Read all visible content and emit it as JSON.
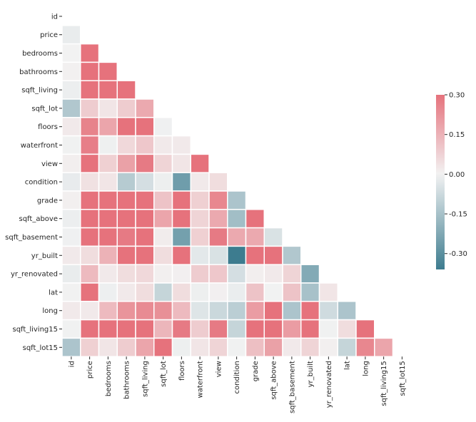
{
  "chart_data": {
    "type": "heatmap",
    "title": "",
    "mask": "upper-triangle",
    "labels": [
      "id",
      "price",
      "bedrooms",
      "bathrooms",
      "sqft_living",
      "sqft_lot",
      "floors",
      "waterfront",
      "view",
      "condition",
      "grade",
      "sqft_above",
      "sqft_basement",
      "yr_built",
      "yr_renovated",
      "lat",
      "long",
      "sqft_living15",
      "sqft_lot15"
    ],
    "lower_triangle_values": [
      [],
      [
        -0.017
      ],
      [
        0.001,
        0.31
      ],
      [
        0.005,
        0.53,
        0.52
      ],
      [
        -0.012,
        0.7,
        0.58,
        0.75
      ],
      [
        -0.13,
        0.09,
        0.03,
        0.09,
        0.17
      ],
      [
        0.02,
        0.26,
        0.18,
        0.5,
        0.35,
        -0.005
      ],
      [
        -0.003,
        0.27,
        -0.007,
        0.06,
        0.1,
        0.02,
        0.02
      ],
      [
        0.01,
        0.4,
        0.08,
        0.19,
        0.28,
        0.07,
        0.03,
        0.4
      ],
      [
        -0.02,
        0.04,
        0.03,
        -0.12,
        -0.06,
        -0.01,
        -0.26,
        0.02,
        0.05
      ],
      [
        0.008,
        0.67,
        0.36,
        0.66,
        0.76,
        0.11,
        0.46,
        0.08,
        0.25,
        -0.14
      ],
      [
        -0.011,
        0.61,
        0.48,
        0.69,
        0.88,
        0.18,
        0.52,
        0.07,
        0.17,
        -0.16,
        0.76
      ],
      [
        -0.005,
        0.32,
        0.3,
        0.28,
        0.44,
        0.015,
        -0.25,
        0.08,
        0.28,
        0.17,
        0.17,
        -0.05
      ],
      [
        0.02,
        0.05,
        0.15,
        0.51,
        0.32,
        0.05,
        0.49,
        -0.03,
        -0.05,
        -0.36,
        0.45,
        0.42,
        -0.13
      ],
      [
        -0.017,
        0.13,
        0.02,
        0.05,
        0.06,
        0.008,
        0.006,
        0.09,
        0.1,
        -0.06,
        0.01,
        0.02,
        0.07,
        -0.22
      ],
      [
        -0.002,
        0.31,
        -0.009,
        0.02,
        0.05,
        -0.09,
        0.05,
        -0.01,
        0.006,
        -0.015,
        0.11,
        -0.001,
        0.11,
        -0.15,
        0.03
      ],
      [
        0.02,
        0.02,
        0.13,
        0.22,
        0.24,
        0.23,
        0.13,
        -0.04,
        -0.08,
        -0.11,
        0.2,
        0.34,
        -0.14,
        0.41,
        -0.07,
        -0.14
      ],
      [
        -0.003,
        0.59,
        0.39,
        0.57,
        0.76,
        0.14,
        0.28,
        0.09,
        0.28,
        -0.09,
        0.71,
        0.73,
        0.2,
        0.33,
        -0.003,
        0.05,
        0.33
      ],
      [
        -0.14,
        0.08,
        0.03,
        0.09,
        0.18,
        0.72,
        -0.01,
        0.03,
        0.07,
        -0.003,
        0.12,
        0.19,
        0.02,
        0.07,
        0.008,
        -0.09,
        0.25,
        0.18
      ]
    ],
    "color_range": [
      -0.36,
      0.3
    ],
    "center": 0,
    "colorbar_ticks": [
      "0.30",
      "0.15",
      "0.00",
      "-0.15",
      "-0.30"
    ],
    "colorbar_tick_values": [
      0.3,
      0.15,
      0.0,
      -0.15,
      -0.3
    ],
    "colors": {
      "negative": "#3d7c8f",
      "center": "#f2f2f2",
      "positive": "#e35864"
    },
    "legend_placement": "right colorbar"
  }
}
